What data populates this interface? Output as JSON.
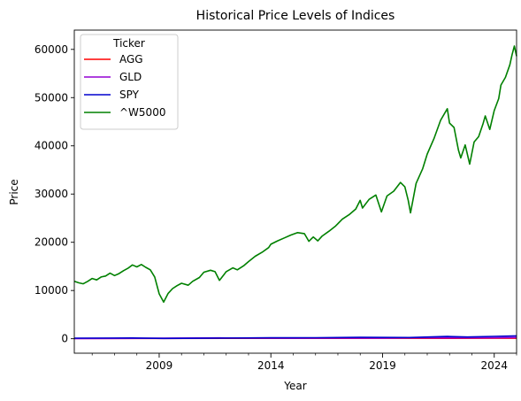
{
  "chart_data": {
    "type": "line",
    "title": "Historical Price Levels of Indices",
    "xlabel": "Year",
    "ylabel": "Price",
    "xlim": [
      2005.2,
      2025.0
    ],
    "ylim": [
      -3000,
      64000
    ],
    "x_ticks": [
      2009,
      2014,
      2019,
      2024
    ],
    "x_tick_labels": [
      "2009",
      "2014",
      "2019",
      "2024"
    ],
    "y_ticks": [
      0,
      10000,
      20000,
      30000,
      40000,
      50000,
      60000
    ],
    "y_tick_labels": [
      "0",
      "10000",
      "20000",
      "30000",
      "40000",
      "50000",
      "60000"
    ],
    "grid": false,
    "legend": {
      "title": "Ticker",
      "placement": "top-left"
    },
    "series": [
      {
        "name": "AGG",
        "color": "#ff0000",
        "x": [
          2005.2,
          2009,
          2014,
          2019,
          2022,
          2024,
          2025
        ],
        "y": [
          60,
          70,
          85,
          95,
          90,
          95,
          100
        ]
      },
      {
        "name": "GLD",
        "color": "#9400d3",
        "x": [
          2005.2,
          2008,
          2011.7,
          2013,
          2015,
          2019,
          2020.6,
          2022,
          2024,
          2025
        ],
        "y": [
          45,
          85,
          180,
          125,
          105,
          130,
          190,
          170,
          200,
          250
        ]
      },
      {
        "name": "SPY",
        "color": "#0000cd",
        "x": [
          2005.2,
          2007.8,
          2009.2,
          2012,
          2014,
          2016,
          2018,
          2020.2,
          2021.9,
          2022.8,
          2024,
          2025
        ],
        "y": [
          120,
          150,
          70,
          140,
          200,
          210,
          280,
          250,
          470,
          360,
          480,
          600
        ]
      },
      {
        "name": "^W5000",
        "color": "#008000",
        "x": [
          2005.2,
          2005.4,
          2005.6,
          2005.8,
          2006.0,
          2006.2,
          2006.4,
          2006.6,
          2006.8,
          2007.0,
          2007.2,
          2007.4,
          2007.6,
          2007.8,
          2008.0,
          2008.2,
          2008.4,
          2008.6,
          2008.8,
          2009.0,
          2009.2,
          2009.4,
          2009.6,
          2009.8,
          2010.0,
          2010.3,
          2010.5,
          2010.8,
          2011.0,
          2011.3,
          2011.5,
          2011.7,
          2011.9,
          2012.0,
          2012.3,
          2012.5,
          2012.8,
          2013.0,
          2013.3,
          2013.6,
          2013.9,
          2014.0,
          2014.3,
          2014.6,
          2014.9,
          2015.2,
          2015.5,
          2015.7,
          2015.9,
          2016.1,
          2016.3,
          2016.6,
          2016.9,
          2017.2,
          2017.5,
          2017.8,
          2018.0,
          2018.1,
          2018.4,
          2018.7,
          2018.95,
          2019.2,
          2019.5,
          2019.8,
          2020.0,
          2020.15,
          2020.25,
          2020.5,
          2020.8,
          2021.0,
          2021.3,
          2021.6,
          2021.9,
          2022.0,
          2022.2,
          2022.4,
          2022.5,
          2022.7,
          2022.9,
          2023.1,
          2023.3,
          2023.5,
          2023.6,
          2023.8,
          2024.0,
          2024.2,
          2024.3,
          2024.5,
          2024.7,
          2024.8,
          2024.9,
          2025.0
        ],
        "y": [
          11900,
          11600,
          11400,
          11900,
          12500,
          12200,
          12800,
          13000,
          13600,
          13100,
          13500,
          14100,
          14600,
          15300,
          14900,
          15400,
          14800,
          14300,
          12800,
          9300,
          7600,
          9400,
          10400,
          11000,
          11500,
          11100,
          11900,
          12700,
          13800,
          14200,
          13900,
          12100,
          13300,
          13900,
          14700,
          14300,
          15200,
          16000,
          17100,
          17900,
          18900,
          19600,
          20300,
          20900,
          21500,
          22000,
          21800,
          20200,
          21100,
          20300,
          21300,
          22300,
          23400,
          24800,
          25700,
          26900,
          28700,
          27100,
          28900,
          29800,
          26300,
          29600,
          30600,
          32400,
          31500,
          28700,
          26100,
          32200,
          35300,
          38300,
          41500,
          45300,
          47700,
          44700,
          43800,
          39100,
          37500,
          40200,
          36200,
          40800,
          41900,
          44600,
          46200,
          43400,
          47300,
          49800,
          52600,
          54200,
          56800,
          58900,
          60700,
          58600
        ]
      }
    ]
  }
}
